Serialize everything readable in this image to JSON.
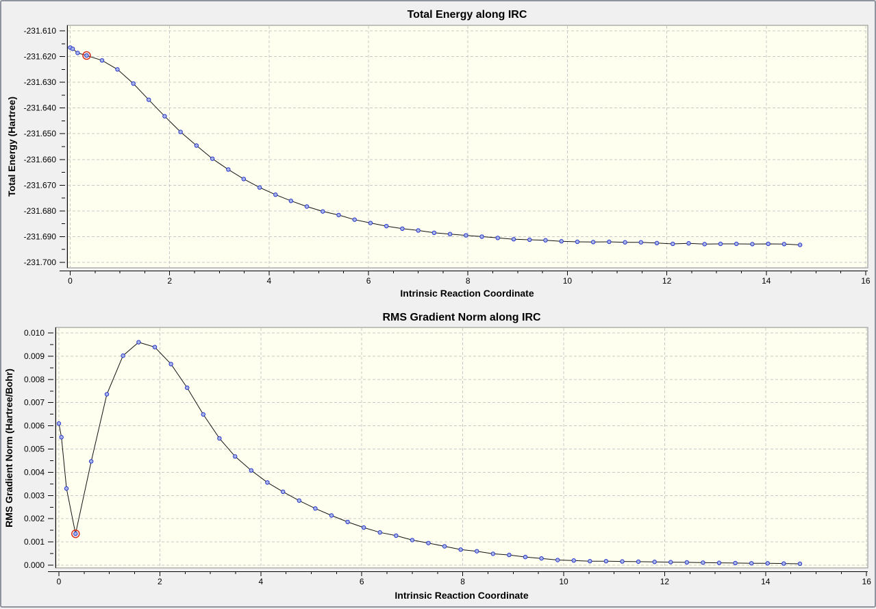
{
  "window": {
    "background": "#f0f0f0",
    "border_color": "#8e939d"
  },
  "colors": {
    "plot_bg": "#fffff0",
    "grid": "#c8c8c8",
    "plot_border": "#8a8a8a",
    "axis": "#000000",
    "line": "#111111",
    "marker_fill": "#a9b4ea",
    "marker_stroke": "#2636c8",
    "selected_ring": "#d52b1e"
  },
  "chart_data": [
    {
      "type": "line",
      "title": "Total Energy along IRC",
      "xlabel": "Intrinsic Reaction Coordinate",
      "ylabel": "Total Energy (Hartree)",
      "xlim": [
        0,
        16
      ],
      "ylim": [
        -231.7,
        -231.61
      ],
      "grid": true,
      "legend": "none",
      "x_ticks": [
        0,
        2,
        4,
        6,
        8,
        10,
        12,
        14,
        16
      ],
      "x_minor_step": 0.5,
      "y_ticks": [
        -231.61,
        -231.62,
        -231.63,
        -231.64,
        -231.65,
        -231.66,
        -231.67,
        -231.68,
        -231.69,
        -231.7
      ],
      "y_tick_decimals": 3,
      "selected_index": 3,
      "x": [
        0.0,
        0.05,
        0.15,
        0.33,
        0.64,
        0.95,
        1.27,
        1.58,
        1.9,
        2.22,
        2.54,
        2.86,
        3.18,
        3.49,
        3.81,
        4.13,
        4.44,
        4.76,
        5.08,
        5.4,
        5.72,
        6.04,
        6.36,
        6.68,
        7.0,
        7.32,
        7.64,
        7.96,
        8.28,
        8.6,
        8.92,
        9.24,
        9.56,
        9.88,
        10.2,
        10.52,
        10.84,
        11.16,
        11.48,
        11.8,
        12.12,
        12.44,
        12.76,
        13.08,
        13.4,
        13.72,
        14.04,
        14.36,
        14.68
      ],
      "y": [
        -231.6165,
        -231.617,
        -231.6186,
        -231.6196,
        -231.6215,
        -231.625,
        -231.6305,
        -231.6368,
        -231.6432,
        -231.6493,
        -231.6546,
        -231.6597,
        -231.6639,
        -231.6676,
        -231.6709,
        -231.6737,
        -231.6761,
        -231.6783,
        -231.6802,
        -231.6816,
        -231.6834,
        -231.6847,
        -231.6859,
        -231.6869,
        -231.6876,
        -231.6885,
        -231.689,
        -231.6895,
        -231.69,
        -231.6905,
        -231.691,
        -231.6912,
        -231.6914,
        -231.6918,
        -231.692,
        -231.6921,
        -231.692,
        -231.6922,
        -231.6922,
        -231.6925,
        -231.6928,
        -231.6926,
        -231.6929,
        -231.6928,
        -231.6928,
        -231.6929,
        -231.6928,
        -231.6929,
        -231.6932
      ]
    },
    {
      "type": "line",
      "title": "RMS Gradient Norm along IRC",
      "xlabel": "Intrinsic Reaction Coordinate",
      "ylabel": "RMS Gradient Norm (Hartree/Bohr)",
      "xlim": [
        0,
        16
      ],
      "ylim": [
        0.0,
        0.01
      ],
      "grid": true,
      "legend": "none",
      "x_ticks": [
        0,
        2,
        4,
        6,
        8,
        10,
        12,
        14,
        16
      ],
      "x_minor_step": 0.5,
      "y_ticks": [
        0.01,
        0.009,
        0.008,
        0.007,
        0.006,
        0.005,
        0.004,
        0.003,
        0.002,
        0.001,
        0.0
      ],
      "y_tick_decimals": 3,
      "selected_index": 3,
      "x": [
        0.0,
        0.05,
        0.15,
        0.33,
        0.64,
        0.95,
        1.27,
        1.58,
        1.9,
        2.22,
        2.54,
        2.86,
        3.18,
        3.49,
        3.81,
        4.13,
        4.44,
        4.76,
        5.08,
        5.4,
        5.72,
        6.04,
        6.36,
        6.68,
        7.0,
        7.32,
        7.64,
        7.96,
        8.28,
        8.6,
        8.92,
        9.24,
        9.56,
        9.88,
        10.2,
        10.52,
        10.84,
        11.16,
        11.48,
        11.8,
        12.12,
        12.44,
        12.76,
        13.08,
        13.4,
        13.72,
        14.04,
        14.36,
        14.68
      ],
      "y": [
        0.0061,
        0.00551,
        0.0033,
        0.00135,
        0.00447,
        0.00736,
        0.00902,
        0.0096,
        0.00939,
        0.00866,
        0.00764,
        0.00649,
        0.00546,
        0.00468,
        0.00408,
        0.00356,
        0.00316,
        0.00278,
        0.00244,
        0.00214,
        0.00186,
        0.00162,
        0.00141,
        0.00127,
        0.00108,
        0.00095,
        0.00081,
        0.00067,
        0.0006,
        0.00049,
        0.00044,
        0.00035,
        0.00029,
        0.00022,
        0.0002,
        0.00017,
        0.00017,
        0.00016,
        0.00015,
        0.00014,
        0.00013,
        0.00012,
        0.00011,
        0.0001,
        9e-05,
        8e-05,
        8e-05,
        7e-05,
        6e-05
      ]
    }
  ]
}
